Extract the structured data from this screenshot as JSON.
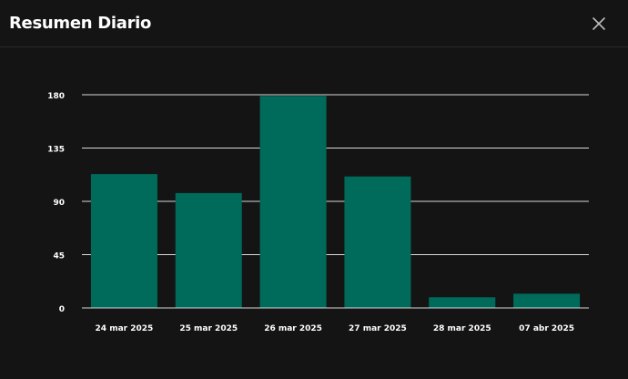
{
  "modal": {
    "title": "Resumen Diario"
  },
  "icons": {
    "close": "close-icon"
  },
  "colors": {
    "background": "#141414",
    "bar": "#006b5a",
    "grid": "#d9d9d9",
    "text": "#ffffff"
  },
  "chart_data": {
    "type": "bar",
    "categories": [
      "24 mar 2025",
      "25 mar 2025",
      "26 mar 2025",
      "27 mar 2025",
      "28 mar 2025",
      "07 abr 2025"
    ],
    "values": [
      113,
      97,
      179,
      111,
      9,
      12
    ],
    "title": "",
    "xlabel": "",
    "ylabel": "",
    "ylim": [
      0,
      180
    ],
    "yticks": [
      0,
      45,
      90,
      135,
      180
    ],
    "grid": true
  }
}
